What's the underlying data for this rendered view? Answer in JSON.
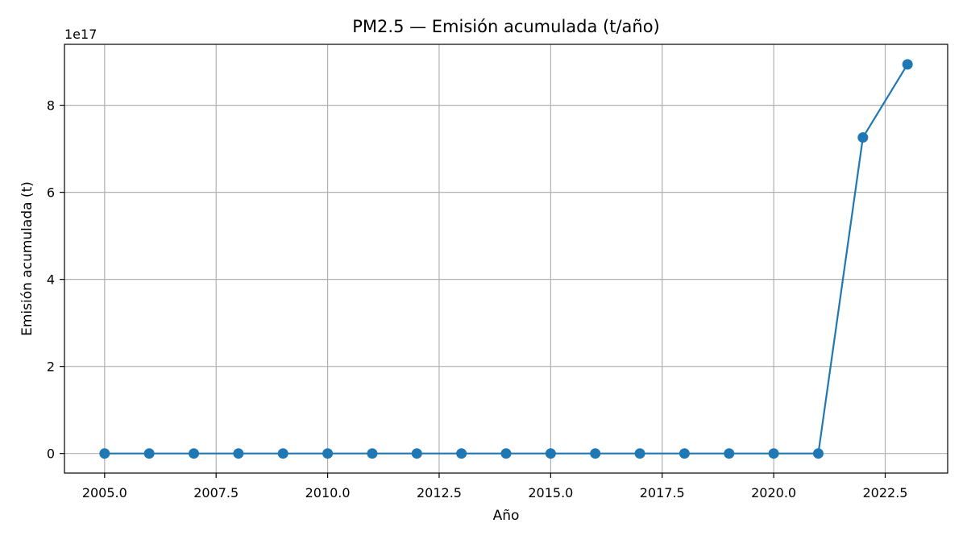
{
  "chart_data": {
    "type": "line",
    "title": "PM2.5 — Emisión acumulada (t/año)",
    "xlabel": "Año",
    "ylabel": "Emisión acumulada (t)",
    "offset_label": "1e17",
    "x": [
      2005,
      2006,
      2007,
      2008,
      2009,
      2010,
      2011,
      2012,
      2013,
      2014,
      2015,
      2016,
      2017,
      2018,
      2019,
      2020,
      2021,
      2022,
      2023
    ],
    "series": [
      {
        "name": "",
        "color": "#1f77b4",
        "values": [
          0,
          0,
          0,
          0,
          0,
          0,
          0,
          0,
          0,
          0,
          0,
          0,
          0,
          0,
          0,
          0,
          0,
          7.26e+17,
          8.94e+17
        ]
      }
    ],
    "xlim": [
      2004.1,
      2023.9
    ],
    "ylim": [
      -4.5e+16,
      9.4e+17
    ],
    "x_ticks": [
      2005.0,
      2007.5,
      2010.0,
      2012.5,
      2015.0,
      2017.5,
      2020.0,
      2022.5
    ],
    "x_tick_labels": [
      "2005.0",
      "2007.5",
      "2010.0",
      "2012.5",
      "2015.0",
      "2017.5",
      "2020.0",
      "2022.5"
    ],
    "y_ticks": [
      0,
      2e+17,
      4e+17,
      6e+17,
      8e+17
    ],
    "y_tick_labels": [
      "0",
      "2",
      "4",
      "6",
      "8"
    ],
    "grid": true,
    "legend": "none"
  }
}
